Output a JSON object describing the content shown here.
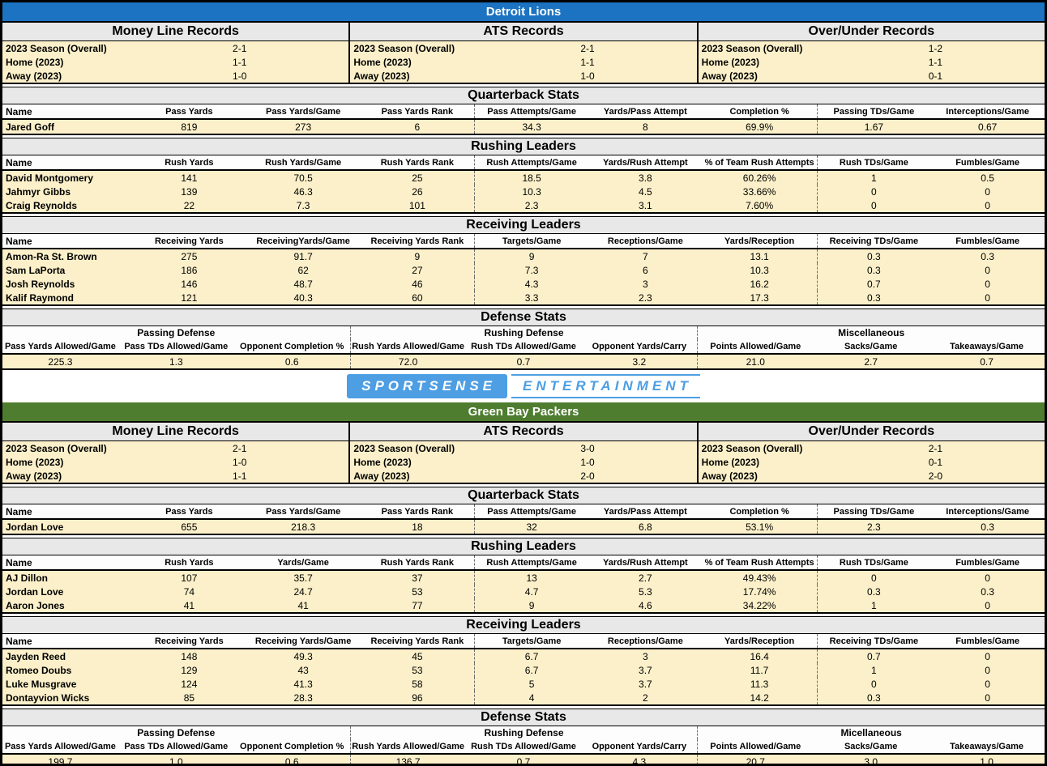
{
  "page": {
    "background": "#FFFFFF",
    "row_fill": "#FBF0C9",
    "title_fill": "#E9E8E8"
  },
  "logo": {
    "primary": "SPORTSENSE",
    "secondary": "ENTERTAINMENT",
    "color": "#4D9EE3"
  },
  "teams": [
    {
      "name": "Detroit Lions",
      "header_color": "#1B73C1",
      "records": [
        {
          "title": "Money Line Records",
          "rows": [
            [
              "2023 Season (Overall)",
              "2-1"
            ],
            [
              "Home (2023)",
              "1-1"
            ],
            [
              "Away (2023)",
              "1-0"
            ]
          ]
        },
        {
          "title": "ATS Records",
          "rows": [
            [
              "2023 Season (Overall)",
              "2-1"
            ],
            [
              "Home (2023)",
              "1-1"
            ],
            [
              "Away (2023)",
              "1-0"
            ]
          ]
        },
        {
          "title": "Over/Under Records",
          "rows": [
            [
              "2023 Season (Overall)",
              "1-2"
            ],
            [
              "Home (2023)",
              "1-1"
            ],
            [
              "Away (2023)",
              "0-1"
            ]
          ]
        }
      ],
      "stat_tables": [
        {
          "title": "Quarterback Stats",
          "columns": [
            "Name",
            "Pass Yards",
            "Pass Yards/Game",
            "Pass Yards Rank",
            "Pass Attempts/Game",
            "Yards/Pass Attempt",
            "Completion %",
            "Passing TDs/Game",
            "Interceptions/Game"
          ],
          "rows": [
            [
              "Jared Goff",
              "819",
              "273",
              "6",
              "34.3",
              "8",
              "69.9%",
              "1.67",
              "0.67"
            ]
          ]
        },
        {
          "title": "Rushing Leaders",
          "columns": [
            "Name",
            "Rush Yards",
            "Rush Yards/Game",
            "Rush Yards Rank",
            "Rush Attempts/Game",
            "Yards/Rush Attempt",
            "% of Team Rush Attempts",
            "Rush TDs/Game",
            "Fumbles/Game"
          ],
          "rows": [
            [
              "David Montgomery",
              "141",
              "70.5",
              "25",
              "18.5",
              "3.8",
              "60.26%",
              "1",
              "0.5"
            ],
            [
              "Jahmyr Gibbs",
              "139",
              "46.3",
              "26",
              "10.3",
              "4.5",
              "33.66%",
              "0",
              "0"
            ],
            [
              "Craig Reynolds",
              "22",
              "7.3",
              "101",
              "2.3",
              "3.1",
              "7.60%",
              "0",
              "0"
            ]
          ]
        },
        {
          "title": "Receiving Leaders",
          "columns": [
            "Name",
            "Receiving Yards",
            "ReceivingYards/Game",
            "Receiving Yards Rank",
            "Targets/Game",
            "Receptions/Game",
            "Yards/Reception",
            "Receiving TDs/Game",
            "Fumbles/Game"
          ],
          "rows": [
            [
              "Amon-Ra St. Brown",
              "275",
              "91.7",
              "9",
              "9",
              "7",
              "13.1",
              "0.3",
              "0.3"
            ],
            [
              "Sam LaPorta",
              "186",
              "62",
              "27",
              "7.3",
              "6",
              "10.3",
              "0.3",
              "0"
            ],
            [
              "Josh Reynolds",
              "146",
              "48.7",
              "46",
              "4.3",
              "3",
              "16.2",
              "0.7",
              "0"
            ],
            [
              "Kalif Raymond",
              "121",
              "40.3",
              "60",
              "3.3",
              "2.3",
              "17.3",
              "0.3",
              "0"
            ]
          ]
        }
      ],
      "defense": {
        "title": "Defense Stats",
        "groups": [
          "Passing Defense",
          "Rushing Defense",
          "Miscellaneous"
        ],
        "columns": [
          "Pass Yards Allowed/Game",
          "Pass TDs Allowed/Game",
          "Opponent Completion %",
          "Rush Yards Allowed/Game",
          "Rush TDs Allowed/Game",
          "Opponent Yards/Carry",
          "Points Allowed/Game",
          "Sacks/Game",
          "Takeaways/Game"
        ],
        "values": [
          "225.3",
          "1.3",
          "0.6",
          "72.0",
          "0.7",
          "3.2",
          "21.0",
          "2.7",
          "0.7"
        ]
      }
    },
    {
      "name": "Green Bay Packers",
      "header_color": "#4E7D2F",
      "records": [
        {
          "title": "Money Line Records",
          "rows": [
            [
              "2023 Season (Overall)",
              "2-1"
            ],
            [
              "Home (2023)",
              "1-0"
            ],
            [
              "Away (2023)",
              "1-1"
            ]
          ]
        },
        {
          "title": "ATS Records",
          "rows": [
            [
              "2023 Season (Overall)",
              "3-0"
            ],
            [
              "Home (2023)",
              "1-0"
            ],
            [
              "Away (2023)",
              "2-0"
            ]
          ]
        },
        {
          "title": "Over/Under Records",
          "rows": [
            [
              "2023 Season (Overall)",
              "2-1"
            ],
            [
              "Home (2023)",
              "0-1"
            ],
            [
              "Away (2023)",
              "2-0"
            ]
          ]
        }
      ],
      "stat_tables": [
        {
          "title": "Quarterback Stats",
          "columns": [
            "Name",
            "Pass Yards",
            "Pass Yards/Game",
            "Pass Yards Rank",
            "Pass Attempts/Game",
            "Yards/Pass Attempt",
            "Completion %",
            "Passing TDs/Game",
            "Interceptions/Game"
          ],
          "rows": [
            [
              "Jordan Love",
              "655",
              "218.3",
              "18",
              "32",
              "6.8",
              "53.1%",
              "2.3",
              "0.3"
            ]
          ]
        },
        {
          "title": "Rushing Leaders",
          "columns": [
            "Name",
            "Rush Yards",
            "Yards/Game",
            "Rush Yards Rank",
            "Rush Attempts/Game",
            "Yards/Rush Attempt",
            "% of Team Rush Attempts",
            "Rush TDs/Game",
            "Fumbles/Game"
          ],
          "rows": [
            [
              "AJ Dillon",
              "107",
              "35.7",
              "37",
              "13",
              "2.7",
              "49.43%",
              "0",
              "0"
            ],
            [
              "Jordan Love",
              "74",
              "24.7",
              "53",
              "4.7",
              "5.3",
              "17.74%",
              "0.3",
              "0.3"
            ],
            [
              "Aaron Jones",
              "41",
              "41",
              "77",
              "9",
              "4.6",
              "34.22%",
              "1",
              "0"
            ]
          ]
        },
        {
          "title": "Receiving Leaders",
          "columns": [
            "Name",
            "Receiving Yards",
            "Receiving Yards/Game",
            "Receiving Yards Rank",
            "Targets/Game",
            "Receptions/Game",
            "Yards/Reception",
            "Receiving TDs/Game",
            "Fumbles/Game"
          ],
          "rows": [
            [
              "Jayden Reed",
              "148",
              "49.3",
              "45",
              "6.7",
              "3",
              "16.4",
              "0.7",
              "0"
            ],
            [
              "Romeo Doubs",
              "129",
              "43",
              "53",
              "6.7",
              "3.7",
              "11.7",
              "1",
              "0"
            ],
            [
              "Luke Musgrave",
              "124",
              "41.3",
              "58",
              "5",
              "3.7",
              "11.3",
              "0",
              "0"
            ],
            [
              "Dontayvion Wicks",
              "85",
              "28.3",
              "96",
              "4",
              "2",
              "14.2",
              "0.3",
              "0"
            ]
          ]
        }
      ],
      "defense": {
        "title": "Defense Stats",
        "groups": [
          "Passing Defense",
          "Rushing Defense",
          "Micellaneous"
        ],
        "columns": [
          "Pass Yards Allowed/Game",
          "Pass TDs Allowed/Game",
          "Opponent Completion %",
          "Rush Yards Allowed/Game",
          "Rush TDs Allowed/Game",
          "Opponent Yards/Carry",
          "Points Allowed/Game",
          "Sacks/Game",
          "Takeaways/Game"
        ],
        "values": [
          "199.7",
          "1.0",
          "0.6",
          "136.7",
          "0.7",
          "4.3",
          "20.7",
          "3.0",
          "1.0"
        ]
      }
    }
  ]
}
